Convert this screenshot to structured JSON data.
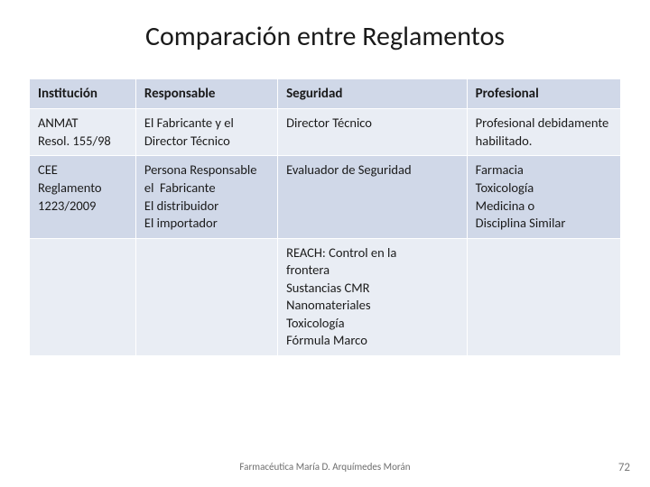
{
  "title": "Comparación entre Reglamentos",
  "table": {
    "type": "table",
    "columns": [
      {
        "key": "institucion",
        "label": "Institución",
        "width_pct": 18
      },
      {
        "key": "responsable",
        "label": "Responsable",
        "width_pct": 24
      },
      {
        "key": "seguridad",
        "label": "Seguridad",
        "width_pct": 32
      },
      {
        "key": "profesional",
        "label": "Profesional",
        "width_pct": 26
      }
    ],
    "header_bg": "#d0d8e8",
    "row_bg_alt": [
      "#e9edf4",
      "#d0d8e8"
    ],
    "border_color": "#ffffff",
    "text_color": "#1a1a1a",
    "font_size_body": 14.5,
    "font_size_header": 15,
    "rows": [
      {
        "institucion": "ANMAT Resol. 155/98",
        "responsable": "El Fabricante y el Director Técnico",
        "seguridad": "Director Técnico",
        "profesional": "Profesional debidamente habilitado."
      },
      {
        "institucion": "CEE Reglamento 1223/2009",
        "responsable": "Persona Responsable el Fabricante El distribuidor El importador",
        "seguridad": "Evaluador de Seguridad",
        "profesional": "Farmacia Toxicología Medicina o Disciplina Similar"
      },
      {
        "institucion": "",
        "responsable": "",
        "seguridad": "REACH: Control en la frontera Sustancias CMR Nanomateriales Toxicología Fórmula Marco",
        "profesional": ""
      }
    ],
    "row2_lines": {
      "responsable": [
        "Persona Responsable",
        "el  Fabricante",
        "El distribuidor",
        "El importador"
      ],
      "profesional": [
        "Farmacia",
        "Toxicología",
        "Medicina o",
        "Disciplina Similar"
      ]
    },
    "row3_lines": {
      "seguridad": [
        "REACH: Control en la",
        "frontera",
        "Sustancias CMR",
        "Nanomateriales",
        "Toxicología",
        "Fórmula Marco"
      ]
    }
  },
  "footer": {
    "credit": "Farmacéutica María D. Arquímedes Morán",
    "page_number": "72"
  },
  "background_color": "#ffffff"
}
